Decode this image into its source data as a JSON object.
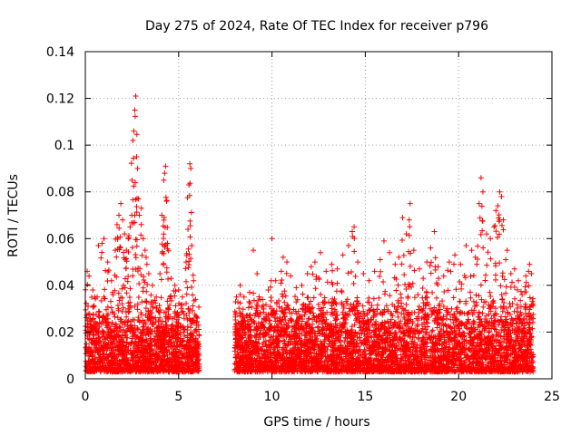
{
  "chart_data": {
    "type": "scatter",
    "title": "Day 275 of 2024, Rate Of TEC Index for receiver p796",
    "xlabel": "GPS time / hours",
    "ylabel": "ROTI / TECUs",
    "xlim": [
      0,
      25
    ],
    "ylim": [
      0,
      0.14
    ],
    "grid": true,
    "marker": "+",
    "color": "#ff0000",
    "x_ticks": [
      0,
      5,
      10,
      15,
      20,
      25
    ],
    "x_tick_labels": [
      "0",
      "5",
      "10",
      "15",
      "20",
      "25"
    ],
    "y_ticks": [
      0,
      0.02,
      0.04,
      0.06,
      0.08,
      0.1,
      0.12,
      0.14
    ],
    "y_tick_labels": [
      "0",
      "0.02",
      "0.04",
      "0.06",
      "0.08",
      "0.1",
      "0.12",
      "0.14"
    ],
    "data_gap_hours": [
      6.1,
      8.0
    ],
    "series": [
      {
        "name": "ROTI",
        "points": [
          [
            0.1,
            0.046
          ],
          [
            0.2,
            0.044
          ],
          [
            0.4,
            0.038
          ],
          [
            0.5,
            0.035
          ],
          [
            0.7,
            0.057
          ],
          [
            0.9,
            0.058
          ],
          [
            1.0,
            0.06
          ],
          [
            1.2,
            0.05
          ],
          [
            1.4,
            0.042
          ],
          [
            1.6,
            0.055
          ],
          [
            1.7,
            0.066
          ],
          [
            1.8,
            0.07
          ],
          [
            1.9,
            0.075
          ],
          [
            2.0,
            0.068
          ],
          [
            2.1,
            0.062
          ],
          [
            2.2,
            0.055
          ],
          [
            2.3,
            0.06
          ],
          [
            2.4,
            0.065
          ],
          [
            2.5,
            0.085
          ],
          [
            2.55,
            0.102
          ],
          [
            2.6,
            0.106
          ],
          [
            2.65,
            0.115
          ],
          [
            2.7,
            0.121
          ],
          [
            2.75,
            0.095
          ],
          [
            2.8,
            0.09
          ],
          [
            2.85,
            0.077
          ],
          [
            2.9,
            0.07
          ],
          [
            3.0,
            0.073
          ],
          [
            3.1,
            0.06
          ],
          [
            3.2,
            0.055
          ],
          [
            3.3,
            0.049
          ],
          [
            3.4,
            0.045
          ],
          [
            3.6,
            0.04
          ],
          [
            3.8,
            0.035
          ],
          [
            4.0,
            0.045
          ],
          [
            4.1,
            0.07
          ],
          [
            4.2,
            0.085
          ],
          [
            4.25,
            0.088
          ],
          [
            4.3,
            0.091
          ],
          [
            4.35,
            0.076
          ],
          [
            4.4,
            0.058
          ],
          [
            4.6,
            0.043
          ],
          [
            4.8,
            0.04
          ],
          [
            5.0,
            0.038
          ],
          [
            5.2,
            0.035
          ],
          [
            5.4,
            0.05
          ],
          [
            5.5,
            0.064
          ],
          [
            5.55,
            0.083
          ],
          [
            5.6,
            0.092
          ],
          [
            5.65,
            0.09
          ],
          [
            5.7,
            0.057
          ],
          [
            5.8,
            0.042
          ],
          [
            5.9,
            0.034
          ],
          [
            6.0,
            0.026
          ],
          [
            8.1,
            0.035
          ],
          [
            8.3,
            0.04
          ],
          [
            8.5,
            0.035
          ],
          [
            8.8,
            0.037
          ],
          [
            9.0,
            0.055
          ],
          [
            9.2,
            0.045
          ],
          [
            9.5,
            0.034
          ],
          [
            9.8,
            0.038
          ],
          [
            10.0,
            0.06
          ],
          [
            10.2,
            0.042
          ],
          [
            10.5,
            0.046
          ],
          [
            10.6,
            0.052
          ],
          [
            10.8,
            0.05
          ],
          [
            11.0,
            0.044
          ],
          [
            11.3,
            0.039
          ],
          [
            11.6,
            0.04
          ],
          [
            11.9,
            0.045
          ],
          [
            12.1,
            0.048
          ],
          [
            12.3,
            0.05
          ],
          [
            12.6,
            0.054
          ],
          [
            12.9,
            0.046
          ],
          [
            13.2,
            0.049
          ],
          [
            13.5,
            0.047
          ],
          [
            13.8,
            0.053
          ],
          [
            14.1,
            0.057
          ],
          [
            14.3,
            0.063
          ],
          [
            14.4,
            0.065
          ],
          [
            14.6,
            0.05
          ],
          [
            14.9,
            0.045
          ],
          [
            15.2,
            0.042
          ],
          [
            15.5,
            0.046
          ],
          [
            15.8,
            0.051
          ],
          [
            16.0,
            0.059
          ],
          [
            16.3,
            0.054
          ],
          [
            16.6,
            0.049
          ],
          [
            16.8,
            0.052
          ],
          [
            17.0,
            0.069
          ],
          [
            17.2,
            0.062
          ],
          [
            17.35,
            0.068
          ],
          [
            17.4,
            0.075
          ],
          [
            17.6,
            0.055
          ],
          [
            17.9,
            0.047
          ],
          [
            18.1,
            0.043
          ],
          [
            18.3,
            0.05
          ],
          [
            18.5,
            0.056
          ],
          [
            18.7,
            0.063
          ],
          [
            18.9,
            0.048
          ],
          [
            19.2,
            0.044
          ],
          [
            19.5,
            0.05
          ],
          [
            19.8,
            0.053
          ],
          [
            20.1,
            0.049
          ],
          [
            20.4,
            0.057
          ],
          [
            20.7,
            0.055
          ],
          [
            20.9,
            0.052
          ],
          [
            21.1,
            0.075
          ],
          [
            21.2,
            0.086
          ],
          [
            21.3,
            0.08
          ],
          [
            21.5,
            0.062
          ],
          [
            21.7,
            0.06
          ],
          [
            21.9,
            0.065
          ],
          [
            22.0,
            0.072
          ],
          [
            22.1,
            0.074
          ],
          [
            22.2,
            0.08
          ],
          [
            22.3,
            0.078
          ],
          [
            22.4,
            0.068
          ],
          [
            22.6,
            0.055
          ],
          [
            22.8,
            0.045
          ],
          [
            23.0,
            0.047
          ],
          [
            23.2,
            0.042
          ],
          [
            23.4,
            0.036
          ],
          [
            23.6,
            0.044
          ],
          [
            23.8,
            0.049
          ],
          [
            23.9,
            0.045
          ]
        ],
        "dense_bands": [
          {
            "from": 0.0,
            "to": 6.1,
            "floor": 0.003,
            "typical_ceiling": 0.03
          },
          {
            "from": 8.0,
            "to": 24.0,
            "floor": 0.003,
            "typical_ceiling": 0.032
          }
        ]
      }
    ]
  }
}
